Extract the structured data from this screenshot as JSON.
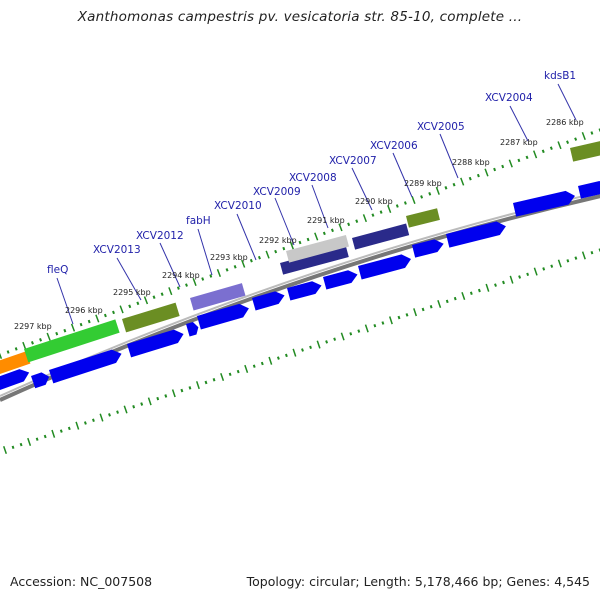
{
  "title": "Xanthomonas campestris pv. vesicatoria str. 85-10, complete ...",
  "footer": {
    "accession": "Accession: NC_007508",
    "summary": "Topology: circular; Length: 5,178,466 bp; Genes: 4,545"
  },
  "colors": {
    "cds_blue": "#0000ee",
    "feature_green": "#33cc33",
    "feature_olive": "#6b8e23",
    "feature_purple": "#7b6fd0",
    "feature_navy": "#2a2a8a",
    "feature_gray": "#c8c8c8",
    "feature_orange": "#ff8c00",
    "tick_green": "#228b22",
    "backbone_gray": "#888888",
    "label_blue": "#2222aa"
  },
  "scale_labels": [
    "2297 kbp",
    "2296 kbp",
    "2295 kbp",
    "2294 kbp",
    "2293 kbp",
    "2292 kbp",
    "2291 kbp",
    "2290 kbp",
    "2289 kbp",
    "2288 kbp",
    "2287 kbp",
    "2286 kbp"
  ],
  "gene_labels": [
    "fleQ",
    "XCV2013",
    "XCV2012",
    "fabH",
    "XCV2010",
    "XCV2009",
    "XCV2008",
    "XCV2007",
    "XCV2006",
    "XCV2005",
    "XCV2004",
    "kdsB1"
  ]
}
